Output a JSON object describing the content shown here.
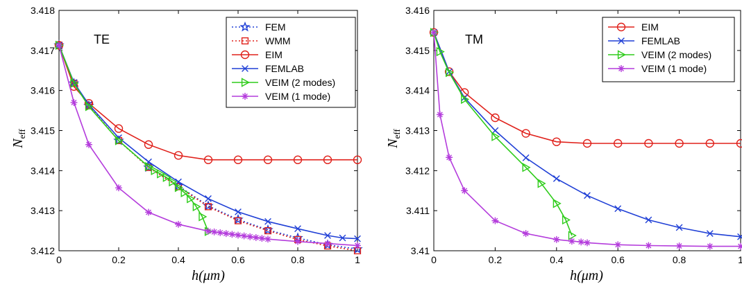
{
  "chart_data": [
    {
      "type": "line",
      "panel_label": "TE",
      "xlabel": "h(μm)",
      "ylabel": "N",
      "ylabel_sub": "eff",
      "xlim": [
        0,
        1
      ],
      "ylim": [
        3.412,
        3.418
      ],
      "x_ticks": [
        "0",
        "0.2",
        "0.4",
        "0.6",
        "0.8",
        "1"
      ],
      "y_ticks": [
        "3.412",
        "3.413",
        "3.414",
        "3.415",
        "3.416",
        "3.417",
        "3.418"
      ],
      "legend_position": "top-right",
      "series": [
        {
          "name": "FEM",
          "color": "#1f3fd6",
          "line": "dotted",
          "marker": "star",
          "x": [
            0,
            0.05,
            0.1,
            0.2,
            0.3,
            0.4,
            0.5,
            0.6,
            0.7,
            0.8,
            0.9,
            1.0
          ],
          "y": [
            3.41713,
            3.41618,
            3.41562,
            3.41475,
            3.41408,
            3.41362,
            3.41312,
            3.41278,
            3.41252,
            3.41232,
            3.41215,
            3.41204
          ]
        },
        {
          "name": "WMM",
          "color": "#e0201a",
          "line": "dotted",
          "marker": "square",
          "x": [
            0,
            0.05,
            0.1,
            0.2,
            0.3,
            0.4,
            0.5,
            0.6,
            0.7,
            0.8,
            0.9,
            1.0
          ],
          "y": [
            3.41713,
            3.41618,
            3.41562,
            3.41475,
            3.41408,
            3.4136,
            3.4131,
            3.41275,
            3.4125,
            3.41228,
            3.41212,
            3.412
          ]
        },
        {
          "name": "EIM",
          "color": "#e0201a",
          "line": "solid",
          "marker": "circle",
          "x": [
            0,
            0.05,
            0.1,
            0.2,
            0.3,
            0.4,
            0.5,
            0.6,
            0.7,
            0.8,
            0.9,
            1.0
          ],
          "y": [
            3.41713,
            3.4161,
            3.41568,
            3.41505,
            3.41465,
            3.41438,
            3.41427,
            3.41427,
            3.41427,
            3.41427,
            3.41427,
            3.41427
          ]
        },
        {
          "name": "FEMLAB",
          "color": "#1f3fd6",
          "line": "solid",
          "marker": "x",
          "x": [
            0,
            0.05,
            0.1,
            0.2,
            0.3,
            0.4,
            0.5,
            0.6,
            0.7,
            0.8,
            0.9,
            0.95,
            1.0
          ],
          "y": [
            3.41713,
            3.4162,
            3.41565,
            3.41482,
            3.41422,
            3.41372,
            3.4133,
            3.41297,
            3.41273,
            3.41255,
            3.41238,
            3.41232,
            3.4123
          ]
        },
        {
          "name": "VEIM (2 modes)",
          "color": "#2ecc1a",
          "line": "solid",
          "marker": "triangle-right",
          "x": [
            0,
            0.05,
            0.1,
            0.2,
            0.3,
            0.32,
            0.34,
            0.36,
            0.38,
            0.4,
            0.42,
            0.44,
            0.46,
            0.48,
            0.5
          ],
          "y": [
            3.41713,
            3.41618,
            3.4156,
            3.41475,
            3.4141,
            3.414,
            3.41392,
            3.41383,
            3.41372,
            3.41358,
            3.41345,
            3.4133,
            3.4131,
            3.41285,
            3.41248
          ]
        },
        {
          "name": "VEIM (1 mode)",
          "color": "#b43cdc",
          "line": "solid",
          "marker": "asterisk",
          "x": [
            0,
            0.05,
            0.1,
            0.2,
            0.3,
            0.4,
            0.5,
            0.52,
            0.54,
            0.56,
            0.58,
            0.6,
            0.62,
            0.64,
            0.66,
            0.68,
            0.7,
            0.8,
            0.9,
            1.0
          ],
          "y": [
            3.41713,
            3.4157,
            3.41465,
            3.41357,
            3.41296,
            3.41266,
            3.41249,
            3.41247,
            3.41245,
            3.41243,
            3.41241,
            3.41239,
            3.41237,
            3.41235,
            3.41233,
            3.41231,
            3.41229,
            3.41223,
            3.41218,
            3.41213
          ]
        }
      ]
    },
    {
      "type": "line",
      "panel_label": "TM",
      "xlabel": "h(μm)",
      "ylabel": "N",
      "ylabel_sub": "eff",
      "xlim": [
        0,
        1
      ],
      "ylim": [
        3.41,
        3.416
      ],
      "x_ticks": [
        "0",
        "0.2",
        "0.4",
        "0.6",
        "0.8",
        "1"
      ],
      "y_ticks": [
        "3.41",
        "3.411",
        "3.412",
        "3.413",
        "3.414",
        "3.415",
        "3.416"
      ],
      "legend_position": "top-right",
      "series": [
        {
          "name": "EIM",
          "color": "#e0201a",
          "line": "solid",
          "marker": "circle",
          "x": [
            0,
            0.05,
            0.1,
            0.2,
            0.3,
            0.4,
            0.5,
            0.6,
            0.7,
            0.8,
            0.9,
            1.0
          ],
          "y": [
            3.41545,
            3.41447,
            3.41395,
            3.41332,
            3.41293,
            3.41272,
            3.41268,
            3.41268,
            3.41268,
            3.41268,
            3.41268,
            3.41268
          ]
        },
        {
          "name": "FEMLAB",
          "color": "#1f3fd6",
          "line": "solid",
          "marker": "x",
          "x": [
            0,
            0.05,
            0.1,
            0.2,
            0.3,
            0.4,
            0.5,
            0.6,
            0.7,
            0.8,
            0.9,
            1.0
          ],
          "y": [
            3.41545,
            3.41447,
            3.41382,
            3.413,
            3.41232,
            3.4118,
            3.41138,
            3.41105,
            3.41077,
            3.41058,
            3.41043,
            3.41035
          ]
        },
        {
          "name": "VEIM (2 modes)",
          "color": "#2ecc1a",
          "line": "solid",
          "marker": "triangle-right",
          "x": [
            0,
            0.02,
            0.05,
            0.1,
            0.2,
            0.3,
            0.35,
            0.4,
            0.43,
            0.45
          ],
          "y": [
            3.41545,
            3.41497,
            3.41445,
            3.41378,
            3.41285,
            3.41208,
            3.41168,
            3.41118,
            3.41077,
            3.41038
          ]
        },
        {
          "name": "VEIM (1 mode)",
          "color": "#b43cdc",
          "line": "solid",
          "marker": "asterisk",
          "x": [
            0,
            0.02,
            0.05,
            0.1,
            0.2,
            0.3,
            0.4,
            0.45,
            0.48,
            0.5,
            0.6,
            0.7,
            0.8,
            0.9,
            1.0
          ],
          "y": [
            3.41545,
            3.4134,
            3.41233,
            3.4115,
            3.41075,
            3.41043,
            3.41028,
            3.41024,
            3.41022,
            3.4102,
            3.41015,
            3.41013,
            3.41012,
            3.41011,
            3.41011
          ]
        }
      ]
    }
  ]
}
